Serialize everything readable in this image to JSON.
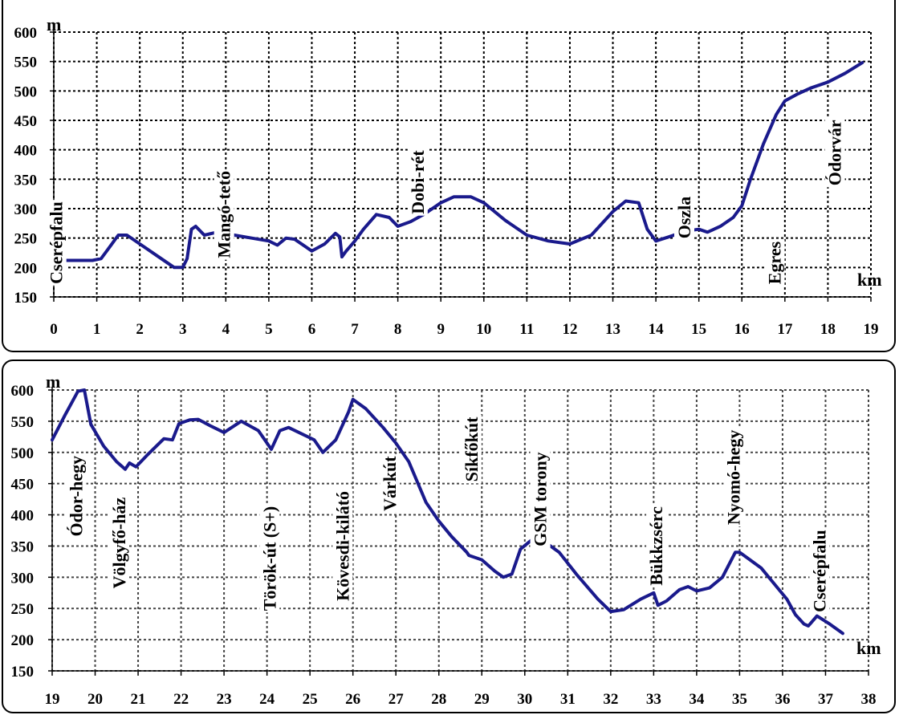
{
  "chart_data": [
    {
      "type": "line",
      "title": "",
      "xlabel": "km",
      "ylabel": "m",
      "xlim": [
        0,
        19
      ],
      "ylim": [
        150,
        600
      ],
      "xticks": [
        "0",
        "1",
        "2",
        "3",
        "4",
        "5",
        "6",
        "7",
        "8",
        "9",
        "10",
        "11",
        "12",
        "13",
        "14",
        "15",
        "16",
        "17",
        "18",
        "19"
      ],
      "yticks": [
        "150",
        "200",
        "250",
        "300",
        "350",
        "400",
        "450",
        "500",
        "550",
        "600"
      ],
      "grid": true,
      "grid_style": "dotted",
      "line_color": "#1a1a8c",
      "series": [
        {
          "x": [
            0,
            0.5,
            0.9,
            1.1,
            1.3,
            1.5,
            1.7,
            2.0,
            2.5,
            2.8,
            3.0,
            3.1,
            3.2,
            3.3,
            3.5,
            3.8,
            4.2,
            4.6,
            5.0,
            5.2,
            5.4,
            5.6,
            6.0,
            6.3,
            6.55,
            6.65,
            6.7,
            6.8,
            7.0,
            7.2,
            7.5,
            7.8,
            8.0,
            8.3,
            8.6,
            9.0,
            9.3,
            9.7,
            10.0,
            10.5,
            11.0,
            11.5,
            12.0,
            12.5,
            13.0,
            13.3,
            13.6,
            13.8,
            14.0,
            14.3,
            14.7,
            15.0,
            15.2,
            15.5,
            15.8,
            16.0,
            16.2,
            16.5,
            16.8,
            17.0,
            17.3,
            17.6,
            18.0,
            18.4,
            18.8
          ],
          "y": [
            212,
            212,
            212,
            215,
            235,
            255,
            255,
            240,
            215,
            200,
            200,
            215,
            265,
            270,
            255,
            260,
            255,
            250,
            245,
            238,
            250,
            248,
            228,
            240,
            258,
            252,
            218,
            228,
            245,
            265,
            290,
            285,
            270,
            278,
            290,
            310,
            320,
            320,
            310,
            280,
            255,
            245,
            240,
            255,
            295,
            313,
            310,
            265,
            245,
            252,
            262,
            265,
            260,
            270,
            285,
            305,
            350,
            410,
            460,
            483,
            495,
            505,
            515,
            530,
            548
          ]
        }
      ],
      "annotations": [
        "Cserépfalu",
        "Mangó-tető",
        "Dobi-rét",
        "Oszla",
        "Egres",
        "Ódorvár"
      ]
    },
    {
      "type": "line",
      "title": "",
      "xlabel": "km",
      "ylabel": "m",
      "xlim": [
        19,
        38
      ],
      "ylim": [
        150,
        600
      ],
      "xticks": [
        "19",
        "20",
        "21",
        "22",
        "23",
        "24",
        "25",
        "26",
        "27",
        "28",
        "29",
        "30",
        "31",
        "32",
        "33",
        "34",
        "35",
        "36",
        "37",
        "38"
      ],
      "yticks": [
        "150",
        "200",
        "250",
        "300",
        "350",
        "400",
        "450",
        "500",
        "550",
        "600"
      ],
      "grid": true,
      "grid_style": "solid",
      "line_color": "#1a1a8c",
      "series": [
        {
          "x": [
            19,
            19.3,
            19.6,
            19.75,
            19.9,
            20.2,
            20.5,
            20.7,
            20.8,
            20.95,
            21.2,
            21.6,
            21.8,
            21.95,
            22.2,
            22.4,
            22.7,
            23.0,
            23.4,
            23.8,
            24.1,
            24.3,
            24.5,
            24.8,
            25.1,
            25.3,
            25.6,
            25.9,
            26.0,
            26.3,
            26.7,
            27.0,
            27.3,
            27.7,
            28.0,
            28.3,
            28.65,
            28.7,
            29.0,
            29.3,
            29.5,
            29.7,
            29.9,
            30.2,
            30.5,
            30.8,
            31.2,
            31.7,
            32.0,
            32.3,
            32.7,
            33.0,
            33.1,
            33.3,
            33.6,
            33.8,
            34.0,
            34.3,
            34.6,
            34.9,
            35.0,
            35.2,
            35.5,
            35.8,
            36.1,
            36.3,
            36.5,
            36.6,
            36.8,
            37.1,
            37.4
          ],
          "y": [
            520,
            560,
            598,
            600,
            545,
            510,
            485,
            473,
            483,
            477,
            495,
            522,
            520,
            546,
            552,
            553,
            542,
            532,
            550,
            535,
            505,
            535,
            540,
            530,
            520,
            500,
            520,
            565,
            585,
            570,
            540,
            515,
            485,
            420,
            390,
            365,
            340,
            335,
            328,
            310,
            300,
            305,
            345,
            362,
            355,
            340,
            305,
            265,
            245,
            248,
            265,
            275,
            255,
            262,
            280,
            285,
            278,
            283,
            300,
            340,
            340,
            330,
            315,
            290,
            265,
            240,
            225,
            222,
            238,
            225,
            210
          ]
        }
      ],
      "annotations": [
        "Ódor-hegy",
        "Völgyfő-ház",
        "Török-út (S+)",
        "Kövesdi-kilátó",
        "Várkút",
        "Síkfőkút",
        "GSM torony",
        "Bükkzsérc",
        "Nyomó-hegy",
        "Cserépfalu"
      ]
    }
  ]
}
